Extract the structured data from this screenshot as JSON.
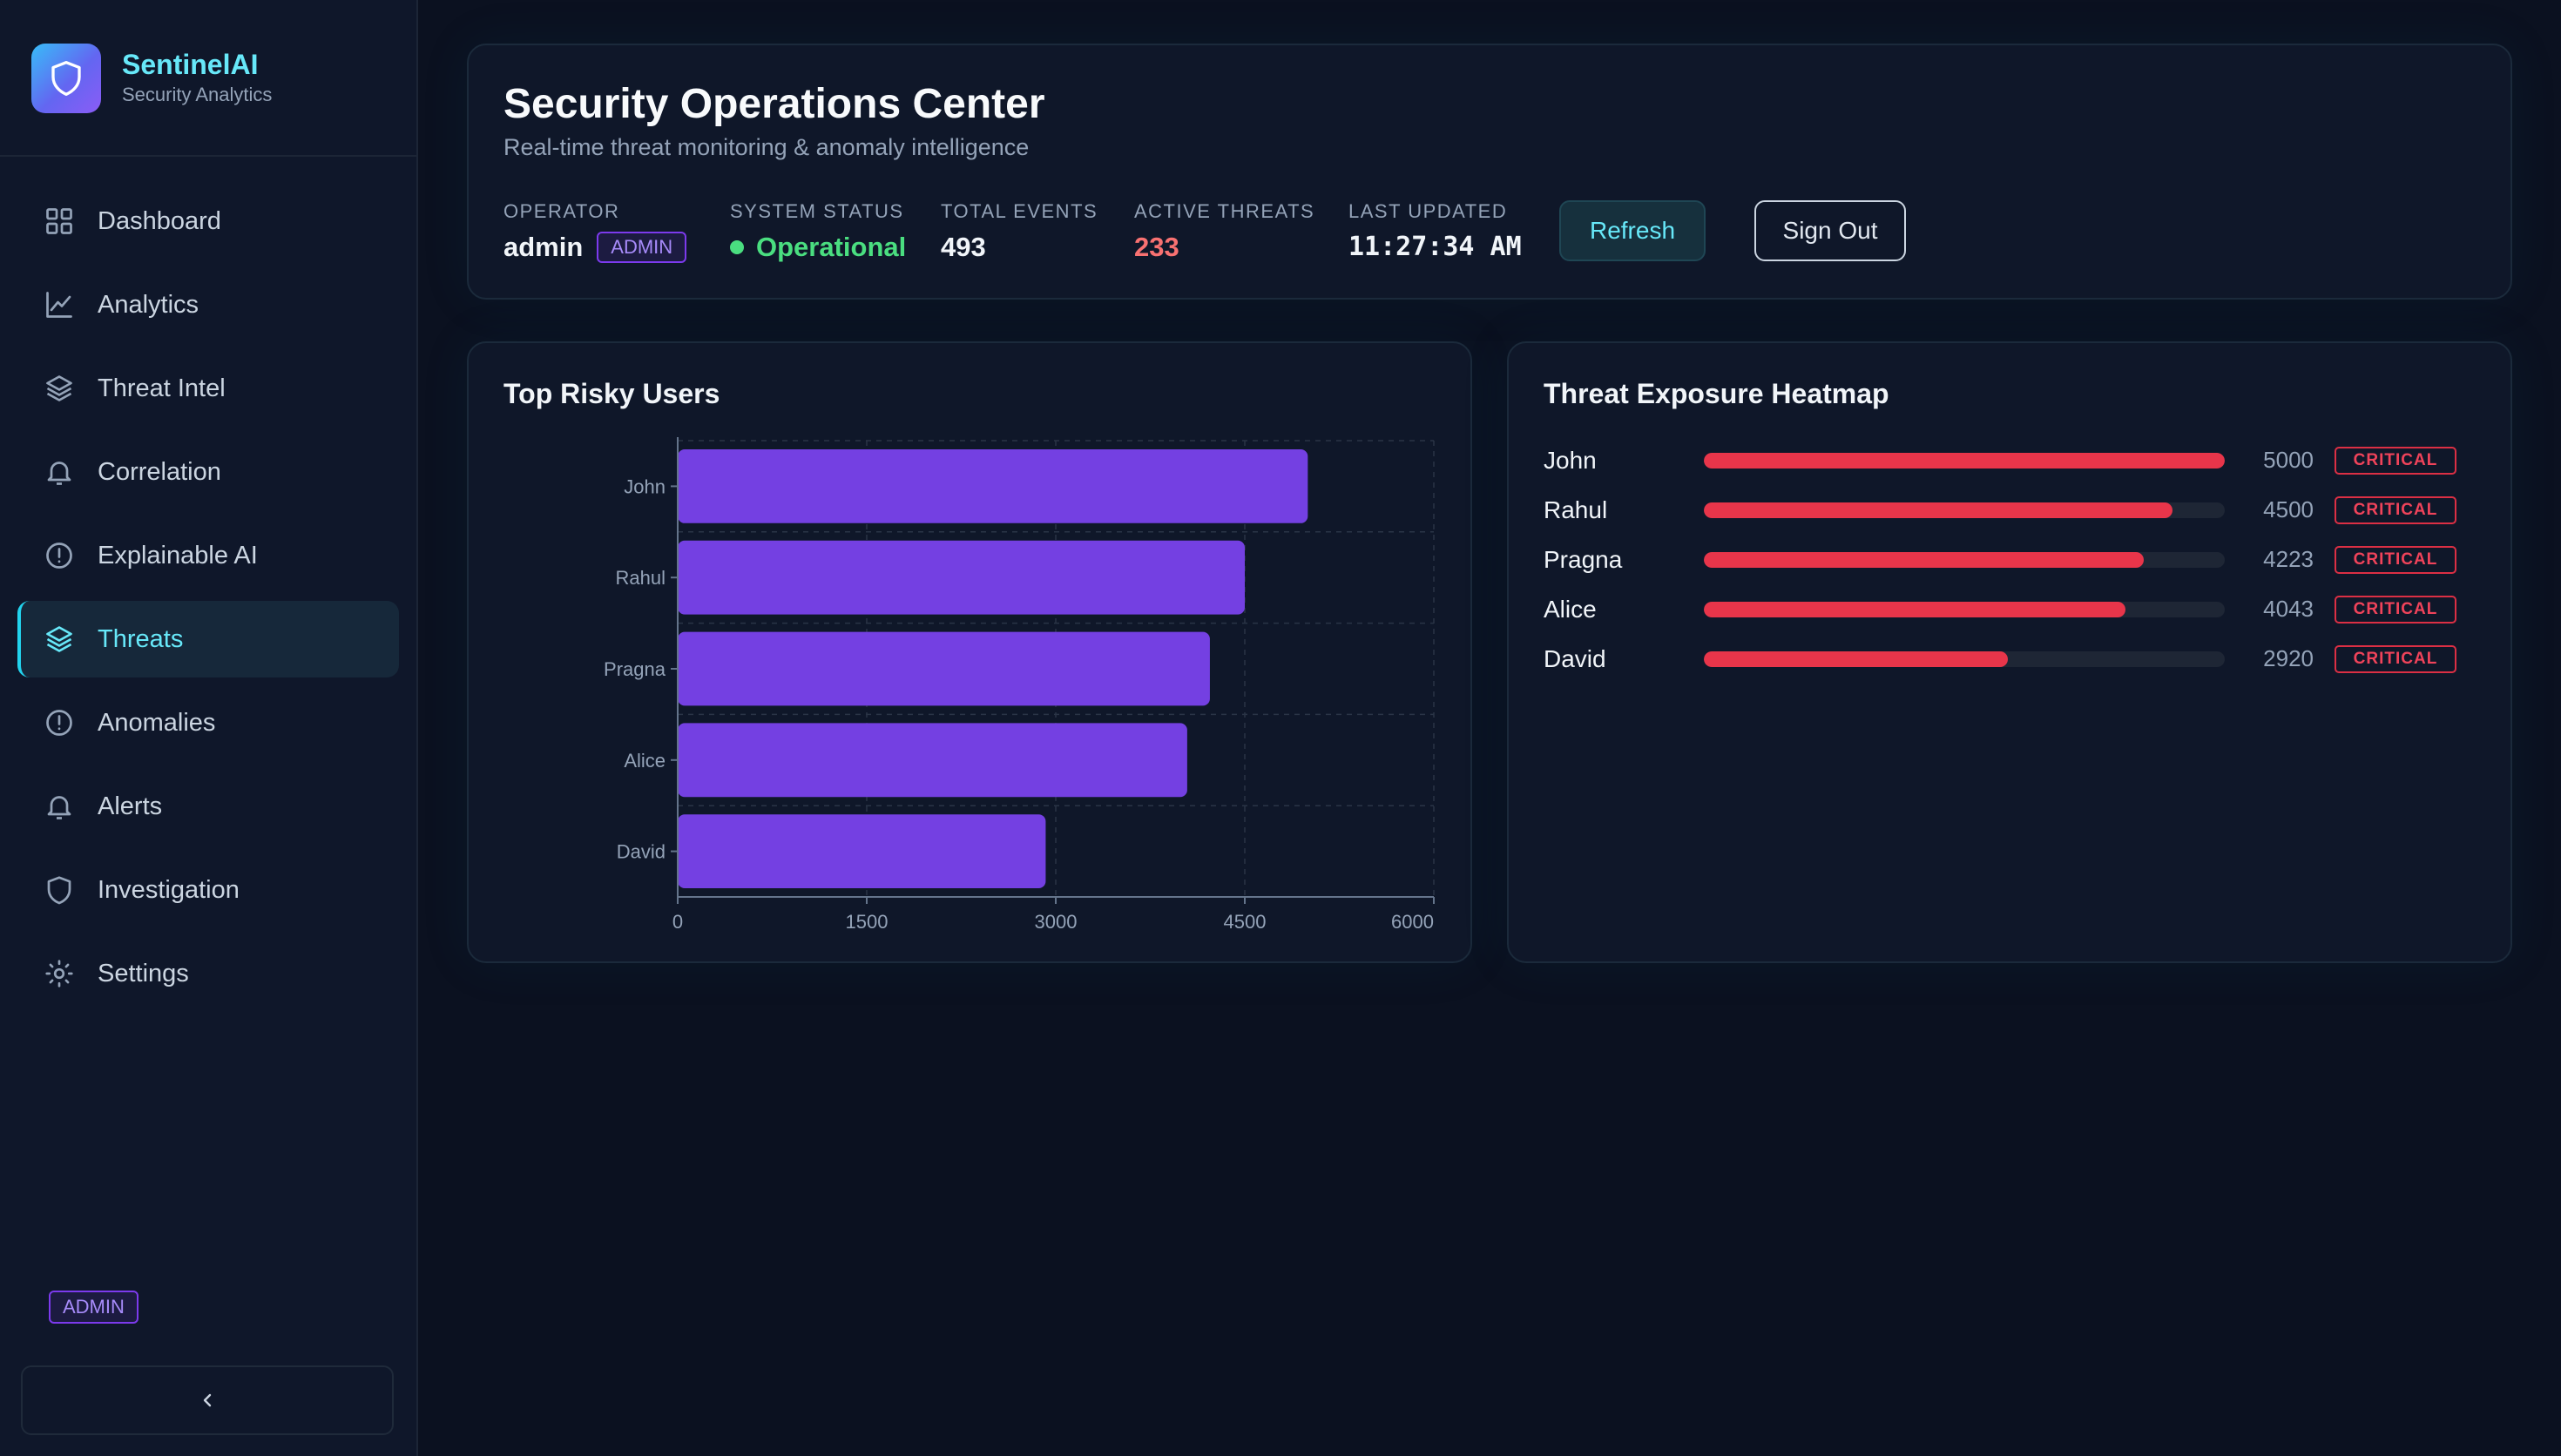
{
  "brand": {
    "name": "SentinelAI",
    "subtitle": "Security Analytics"
  },
  "sidebar": {
    "items": [
      {
        "label": "Dashboard",
        "icon": "grid-icon",
        "active": false
      },
      {
        "label": "Analytics",
        "icon": "line-chart-icon",
        "active": false
      },
      {
        "label": "Threat Intel",
        "icon": "layers-icon",
        "active": false
      },
      {
        "label": "Correlation",
        "icon": "bell-icon",
        "active": false
      },
      {
        "label": "Explainable AI",
        "icon": "alert-circle-icon",
        "active": false
      },
      {
        "label": "Threats",
        "icon": "layers-icon",
        "active": true
      },
      {
        "label": "Anomalies",
        "icon": "alert-circle-icon",
        "active": false
      },
      {
        "label": "Alerts",
        "icon": "bell-icon",
        "active": false
      },
      {
        "label": "Investigation",
        "icon": "shield-icon",
        "active": false
      },
      {
        "label": "Settings",
        "icon": "gear-icon",
        "active": false
      }
    ],
    "role_badge": "ADMIN",
    "collapse_icon": "chevron-left-icon"
  },
  "header": {
    "title": "Security Operations Center",
    "subtitle": "Real-time threat monitoring & anomaly intelligence",
    "operator_label": "OPERATOR",
    "operator_value": "admin",
    "operator_badge": "ADMIN",
    "status_label": "SYSTEM STATUS",
    "status_value": "Operational",
    "events_label": "TOTAL EVENTS",
    "events_value": "493",
    "threats_label": "ACTIVE THREATS",
    "threats_value": "233",
    "updated_label": "LAST UPDATED",
    "updated_value": "11:27:34 AM",
    "refresh_label": "Refresh",
    "signout_label": "Sign Out"
  },
  "risky_users": {
    "title": "Top Risky Users"
  },
  "heatmap": {
    "title": "Threat Exposure Heatmap",
    "max": 5000,
    "rows": [
      {
        "name": "John",
        "value": "5000",
        "level": "CRITICAL"
      },
      {
        "name": "Rahul",
        "value": "4500",
        "level": "CRITICAL"
      },
      {
        "name": "Pragna",
        "value": "4223",
        "level": "CRITICAL"
      },
      {
        "name": "Alice",
        "value": "4043",
        "level": "CRITICAL"
      },
      {
        "name": "David",
        "value": "2920",
        "level": "CRITICAL"
      }
    ]
  },
  "colors": {
    "accent": "#22d3ee",
    "bar": "#7440e2",
    "critical": "#e8354a",
    "operational": "#4ade80"
  },
  "chart_data": {
    "type": "bar",
    "orientation": "horizontal",
    "title": "Top Risky Users",
    "categories": [
      "John",
      "Rahul",
      "Pragna",
      "Alice",
      "David"
    ],
    "values": [
      5000,
      4500,
      4223,
      4043,
      2920
    ],
    "xlim": [
      0,
      6000
    ],
    "xticks": [
      0,
      1500,
      3000,
      4500,
      6000
    ],
    "grid": true
  }
}
